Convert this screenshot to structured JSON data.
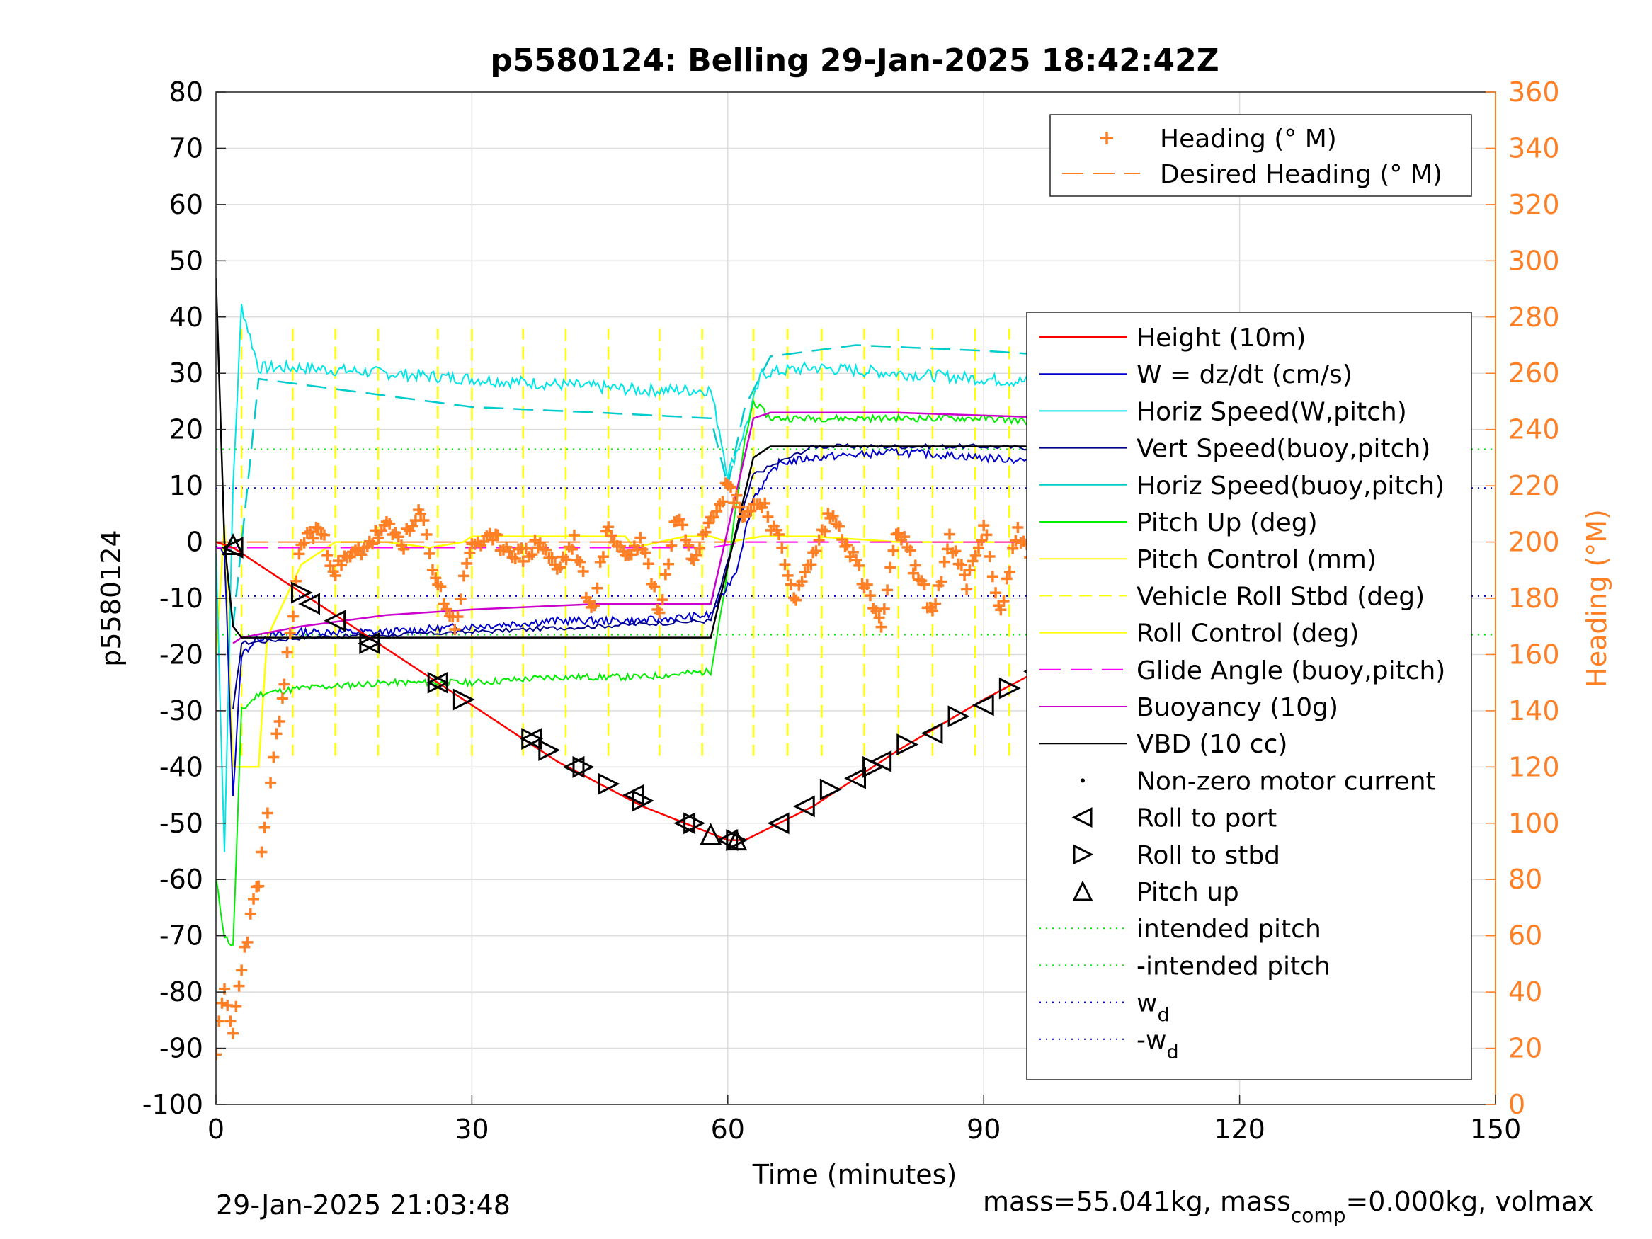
{
  "chart_data": {
    "type": "line",
    "title": "p5580124: Belling 29-Jan-2025 18:42:42Z",
    "xlabel": "Time (minutes)",
    "ylabel": "p5580124",
    "y2label": "Heading (°M)",
    "xlim": [
      0,
      150
    ],
    "ylim": [
      -100,
      80
    ],
    "y2lim": [
      0,
      360
    ],
    "xticks": [
      "0",
      "30",
      "60",
      "90",
      "120",
      "150"
    ],
    "yticks": [
      "80",
      "70",
      "60",
      "50",
      "40",
      "30",
      "20",
      "10",
      "0",
      "-10",
      "-20",
      "-30",
      "-40",
      "-50",
      "-60",
      "-70",
      "-80",
      "-90",
      "-100"
    ],
    "y2ticks": [
      "360",
      "340",
      "320",
      "300",
      "280",
      "260",
      "240",
      "220",
      "200",
      "180",
      "160",
      "140",
      "120",
      "100",
      "80",
      "60",
      "40",
      "20",
      "0"
    ],
    "grid": true,
    "legend_main_position": "right",
    "legend_heading_position": "top-right",
    "footer_left": "29-Jan-2025 21:03:48",
    "footer_right": "mass=55.041kg, mass",
    "footer_right_sub": "comp",
    "footer_right_tail": "=0.000kg, volmax",
    "colors": {
      "height": "#ff0000",
      "w": "#0000cc",
      "horiz_w": "#00e5e5",
      "vert_buoy": "#00008b",
      "horiz_buoy": "#00cccc",
      "pitch": "#00ee00",
      "pitch_control": "#ffff00",
      "roll": "#ffff00",
      "glide": "#ff00ff",
      "buoyancy": "#cc00cc",
      "vbd": "#000000",
      "heading": "#ff7f24",
      "intended": "#00ee00",
      "wd": "#0000cc"
    },
    "legend_heading": [
      {
        "label": "Heading (° M)"
      },
      {
        "label": "Desired Heading (° M)"
      }
    ],
    "legend_main": [
      {
        "label": "Height (10m)"
      },
      {
        "label": "W = dz/dt (cm/s)"
      },
      {
        "label": "Horiz Speed(W,pitch)"
      },
      {
        "label": "Vert Speed(buoy,pitch)"
      },
      {
        "label": "Horiz Speed(buoy,pitch)"
      },
      {
        "label": "Pitch Up (deg)"
      },
      {
        "label": "Pitch Control (mm)"
      },
      {
        "label": "Vehicle Roll Stbd (deg)"
      },
      {
        "label": "Roll Control (deg)"
      },
      {
        "label": "Glide Angle (buoy,pitch)"
      },
      {
        "label": "Buoyancy (10g)"
      },
      {
        "label": "VBD (10 cc)"
      },
      {
        "label": "Non-zero motor current"
      },
      {
        "label": "Roll to port"
      },
      {
        "label": "Roll to stbd"
      },
      {
        "label": "Pitch up"
      },
      {
        "label": "intended pitch"
      },
      {
        "label": "-intended pitch"
      },
      {
        "label": "w",
        "sub": "d"
      },
      {
        "label": "-w",
        "sub": "d"
      }
    ],
    "series": {
      "height": {
        "name": "Height (10m)",
        "x": [
          0,
          2,
          10,
          20,
          30,
          40,
          50,
          55,
          60,
          62,
          70,
          80,
          90,
          100,
          110,
          120,
          125,
          130
        ],
        "y": [
          0,
          -1,
          -9,
          -19,
          -29,
          -39,
          -47,
          -50,
          -53,
          -53,
          -47,
          -37,
          -28,
          -20,
          -12,
          -4,
          -2,
          0
        ]
      },
      "w": {
        "name": "W = dz/dt (cm/s)",
        "x": [
          0,
          1,
          2,
          3,
          5,
          10,
          20,
          30,
          40,
          50,
          58,
          61,
          63,
          66,
          70,
          80,
          90,
          100,
          110,
          120,
          125,
          129
        ],
        "y": [
          -1,
          -2,
          -45,
          -20,
          -17,
          -16,
          -16,
          -15,
          -14,
          -14,
          -13,
          -5,
          8,
          14,
          15,
          16,
          15,
          14,
          13,
          12,
          10,
          18
        ]
      },
      "horiz_w": {
        "name": "Horiz Speed(W,pitch)",
        "x": [
          0,
          1,
          2,
          3,
          5,
          10,
          20,
          30,
          40,
          50,
          58,
          59,
          60,
          62,
          64,
          70,
          80,
          90,
          100,
          110,
          120,
          125,
          129
        ],
        "y": [
          -2,
          -55,
          10,
          42,
          31,
          31,
          30,
          29,
          28,
          27,
          27,
          20,
          12,
          20,
          30,
          31,
          30,
          29,
          28,
          27,
          25,
          20,
          22
        ]
      },
      "vert_buoy": {
        "name": "Vert Speed(buoy,pitch)",
        "x": [
          2,
          3,
          10,
          30,
          58,
          63,
          70,
          90,
          110,
          129
        ],
        "y": [
          -30,
          -18,
          -17,
          -16,
          -14,
          12,
          17,
          17,
          16,
          14
        ]
      },
      "horiz_buoy": {
        "name": "Horiz Speed(buoy,pitch)",
        "x": [
          2,
          5,
          15,
          30,
          45,
          58,
          60,
          62,
          65,
          75,
          90,
          110,
          125,
          129
        ],
        "y": [
          -15,
          29,
          27,
          24,
          23,
          22,
          10,
          24,
          33,
          35,
          34,
          32,
          30,
          28
        ]
      },
      "pitch": {
        "name": "Pitch Up (deg)",
        "x": [
          0,
          1,
          2,
          3,
          5,
          10,
          20,
          30,
          40,
          50,
          58,
          60,
          62,
          63,
          65,
          70,
          80,
          90,
          100,
          110,
          120,
          125,
          129
        ],
        "y": [
          -60,
          -70,
          -72,
          -30,
          -27,
          -26,
          -25,
          -25,
          -24,
          -24,
          -23,
          -5,
          18,
          25,
          22,
          22,
          22,
          22,
          21,
          20,
          19,
          18,
          19
        ]
      },
      "glide": {
        "name": "Glide Angle (buoy,pitch)",
        "x": [
          0,
          2,
          10,
          30,
          58,
          62,
          70,
          100,
          129
        ],
        "y": [
          -1,
          -1,
          -1,
          -1,
          -1,
          0,
          0,
          0,
          0
        ]
      },
      "buoyancy": {
        "name": "Buoyancy (10g)",
        "x": [
          2,
          3,
          10,
          20,
          30,
          45,
          58,
          63,
          65,
          80,
          100,
          120,
          127
        ],
        "y": [
          -18,
          -17,
          -15,
          -13,
          -12,
          -11,
          -11,
          22,
          23,
          23,
          22,
          20,
          18
        ]
      },
      "vbd": {
        "name": "VBD (10 cc)",
        "x": [
          0,
          1,
          2,
          3,
          10,
          58,
          63,
          65,
          127
        ],
        "y": [
          47,
          0,
          -15,
          -17,
          -17,
          -17,
          15,
          17,
          17
        ]
      },
      "pitch_control_steps": {
        "name": "Pitch Control (mm)",
        "x": [
          0,
          1,
          2,
          3,
          5,
          6,
          10,
          14,
          15,
          20,
          25,
          29,
          30,
          40,
          48,
          49,
          55,
          58,
          60,
          64,
          70,
          80,
          90,
          100,
          110,
          120,
          125,
          129
        ],
        "y": [
          -20,
          3,
          -40,
          -40,
          -40,
          -17,
          -4,
          0,
          0,
          0,
          -1,
          0,
          1,
          1,
          1,
          -1,
          1,
          1,
          0,
          1,
          1,
          0,
          0,
          0,
          0,
          0,
          0,
          0
        ]
      },
      "roll_spikes_x": [
        3,
        9,
        14,
        19,
        26,
        30,
        36,
        41,
        46,
        52,
        57,
        63,
        67,
        71,
        76,
        80,
        84,
        89,
        93,
        98,
        103,
        108,
        113,
        118,
        124,
        128
      ],
      "intended_pitch": {
        "name": "intended pitch",
        "y": 16.5
      },
      "neg_intended_pitch": {
        "name": "-intended pitch",
        "y": -16.5
      },
      "wd": {
        "name": "w_d",
        "y": 9.6
      },
      "neg_wd": {
        "name": "-w_d",
        "y": -9.6
      },
      "heading": {
        "name": "Heading (° M)",
        "x": [
          0,
          1,
          2,
          3,
          5,
          8,
          10,
          12,
          14,
          16,
          18,
          20,
          22,
          24,
          26,
          28,
          30,
          33,
          36,
          38,
          40,
          42,
          44,
          46,
          48,
          50,
          52,
          54,
          56,
          58,
          60,
          62,
          64,
          66,
          68,
          70,
          72,
          74,
          76,
          78,
          80,
          82,
          84,
          86,
          88,
          90,
          92,
          94,
          96,
          98,
          100,
          102,
          104,
          106,
          108,
          110,
          112,
          114,
          116,
          118,
          120,
          122,
          124,
          126,
          128,
          130
        ],
        "y": [
          20,
          40,
          25,
          50,
          80,
          150,
          200,
          205,
          190,
          195,
          200,
          205,
          200,
          210,
          185,
          170,
          200,
          200,
          195,
          200,
          190,
          200,
          175,
          205,
          195,
          200,
          175,
          210,
          195,
          210,
          220,
          210,
          215,
          200,
          180,
          195,
          210,
          200,
          185,
          170,
          205,
          190,
          175,
          200,
          185,
          205,
          175,
          205,
          190,
          210,
          180,
          205,
          190,
          210,
          200,
          185,
          210,
          195,
          205,
          200,
          195,
          200,
          180,
          205,
          200,
          210
        ]
      },
      "desired_heading": {
        "name": "Desired Heading (° M)",
        "x": [
          0,
          130
        ],
        "y": [
          200,
          200
        ]
      }
    },
    "markers": {
      "roll_port": {
        "x": [
          2,
          11,
          14,
          18,
          26,
          37,
          42,
          49,
          55,
          60,
          66,
          69,
          75,
          78,
          84,
          90,
          96,
          102,
          109,
          116,
          123,
          127
        ],
        "y": [
          -1,
          -11,
          -14,
          -18,
          -25,
          -35,
          -40,
          -45,
          -50,
          -53,
          -50,
          -47,
          -42,
          -39,
          -34,
          -29,
          -23,
          -18,
          -14,
          -8,
          -3,
          -1
        ]
      },
      "roll_stbd": {
        "x": [
          10,
          18,
          26,
          29,
          37,
          39,
          43,
          46,
          50,
          56,
          61,
          72,
          77,
          81,
          87,
          93,
          99,
          104,
          110,
          113,
          122,
          125,
          129
        ],
        "y": [
          -9,
          -18,
          -25,
          -28,
          -35,
          -37,
          -40,
          -43,
          -46,
          -50,
          -53,
          -44,
          -40,
          -36,
          -31,
          -26,
          -21,
          -17,
          -12,
          -10,
          -4,
          -2,
          0
        ]
      },
      "pitch_up": {
        "x": [
          2,
          58,
          61
        ],
        "y": [
          -0.5,
          -52,
          -53
        ]
      }
    }
  }
}
